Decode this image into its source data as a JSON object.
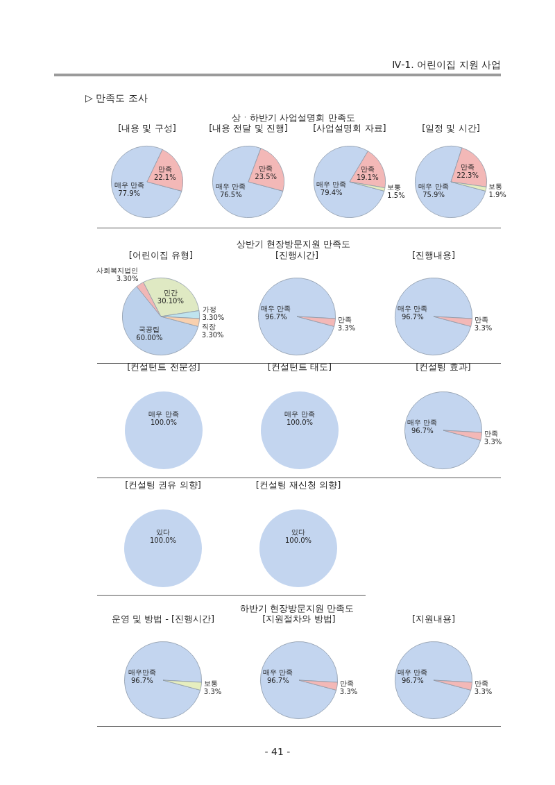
{
  "chart_data": [
    {
      "type": "pie",
      "title": "[내용 및 구성]",
      "categories": [
        "매우 만족",
        "만족"
      ],
      "values": [
        77.9,
        22.1
      ],
      "colors": [
        "#c3d5ef",
        "#f3b8b7"
      ],
      "value_labels": [
        "77.9%",
        "22.1%"
      ],
      "annotations": [
        "Ⅳ-1. 어린이집 지원 사업",
        "▷ 만족도 조사",
        "상ㆍ하반기 사업설명회 만족도"
      ]
    },
    {
      "type": "pie",
      "title": "[내용 전달 및 진행]",
      "categories": [
        "매우 만족",
        "만족"
      ],
      "values": [
        76.5,
        23.5
      ],
      "colors": [
        "#c3d5ef",
        "#f3b8b7"
      ],
      "value_labels": [
        "76.5%",
        "23.5%"
      ]
    },
    {
      "type": "pie",
      "title": "[사업설명회 자료]",
      "categories": [
        "매우 만족",
        "만족",
        "보통"
      ],
      "values": [
        79.4,
        19.1,
        1.5
      ],
      "colors": [
        "#c3d5ef",
        "#f3b8b7",
        "#e6eebf"
      ],
      "value_labels": [
        "79.4%",
        "19.1%",
        "1.5%"
      ]
    },
    {
      "type": "pie",
      "title": "[일정 및 시간]",
      "categories": [
        "매우 만족",
        "만족",
        "보통"
      ],
      "values": [
        75.9,
        22.3,
        1.9
      ],
      "colors": [
        "#c3d5ef",
        "#f3b8b7",
        "#e6eebf"
      ],
      "value_labels": [
        "75.9%",
        "22.3%",
        "1.9%"
      ]
    },
    {
      "type": "pie",
      "title": "[어린이집 유형]",
      "categories": [
        "국공립",
        "사회복지법인",
        "민간",
        "가정",
        "직장"
      ],
      "values": [
        60,
        3.3,
        30.1,
        3.3,
        3.3
      ],
      "colors": [
        "#bcd1ec",
        "#f1b7b6",
        "#dfe9c3",
        "#bfe3ee",
        "#f9d0ae"
      ],
      "value_labels": [
        "60.00%",
        "3.30%",
        "30.10%",
        "3.30%",
        "3.30%"
      ],
      "annotations": [
        "상반기 현장방문지원 만족도"
      ]
    },
    {
      "type": "pie",
      "title": "[진행시간]",
      "categories": [
        "매우 만족",
        "만족"
      ],
      "values": [
        96.7,
        3.3
      ],
      "colors": [
        "#c3d5ef",
        "#f3b8b7"
      ],
      "value_labels": [
        "96.7%",
        "3.3%"
      ]
    },
    {
      "type": "pie",
      "title": "[진행내용]",
      "categories": [
        "매우 만족",
        "만족"
      ],
      "values": [
        96.7,
        3.3
      ],
      "colors": [
        "#c3d5ef",
        "#f3b8b7"
      ],
      "value_labels": [
        "96.7%",
        "3.3%"
      ]
    },
    {
      "type": "pie",
      "title": "[컨설턴트 전문성]",
      "categories": [
        "매우 만족"
      ],
      "values": [
        100
      ],
      "colors": [
        "#c3d5ef"
      ],
      "value_labels": [
        "100.0%"
      ]
    },
    {
      "type": "pie",
      "title": "[컨설턴트 태도]",
      "categories": [
        "매우 만족"
      ],
      "values": [
        100
      ],
      "colors": [
        "#c3d5ef"
      ],
      "value_labels": [
        "100.0%"
      ]
    },
    {
      "type": "pie",
      "title": "[컨설팅 효과]",
      "categories": [
        "매우 만족",
        "만족"
      ],
      "values": [
        96.7,
        3.3
      ],
      "colors": [
        "#c3d5ef",
        "#f3b8b7"
      ],
      "value_labels": [
        "96.7%",
        "3.3%"
      ]
    },
    {
      "type": "pie",
      "title": "[컨설팅 권유 의향]",
      "categories": [
        "있다"
      ],
      "values": [
        100
      ],
      "colors": [
        "#c3d5ef"
      ],
      "value_labels": [
        "100.0%"
      ]
    },
    {
      "type": "pie",
      "title": "[컨설팅 재신청 의향]",
      "categories": [
        "있다"
      ],
      "values": [
        100
      ],
      "colors": [
        "#c3d5ef"
      ],
      "value_labels": [
        "100.0%"
      ]
    },
    {
      "type": "pie",
      "title": "운영 및 방법 - [진행시간]",
      "categories": [
        "매우만족",
        "보통"
      ],
      "values": [
        96.7,
        3.3
      ],
      "colors": [
        "#c3d5ef",
        "#e6eebf"
      ],
      "value_labels": [
        "96.7%",
        "3.3%"
      ],
      "annotations": [
        "하반기 현장방문지원 만족도"
      ]
    },
    {
      "type": "pie",
      "title": "[지원절차와 방법]",
      "categories": [
        "매우 만족",
        "만족"
      ],
      "values": [
        96.7,
        3.3
      ],
      "colors": [
        "#c3d5ef",
        "#f3b8b7"
      ],
      "value_labels": [
        "96.7%",
        "3.3%"
      ]
    },
    {
      "type": "pie",
      "title": "[지원내용]",
      "categories": [
        "매우 만족",
        "만족"
      ],
      "values": [
        96.7,
        3.3
      ],
      "colors": [
        "#c3d5ef",
        "#f3b8b7"
      ],
      "value_labels": [
        "96.7%",
        "3.3%"
      ],
      "annotations": [
        "- 41 -"
      ]
    }
  ]
}
